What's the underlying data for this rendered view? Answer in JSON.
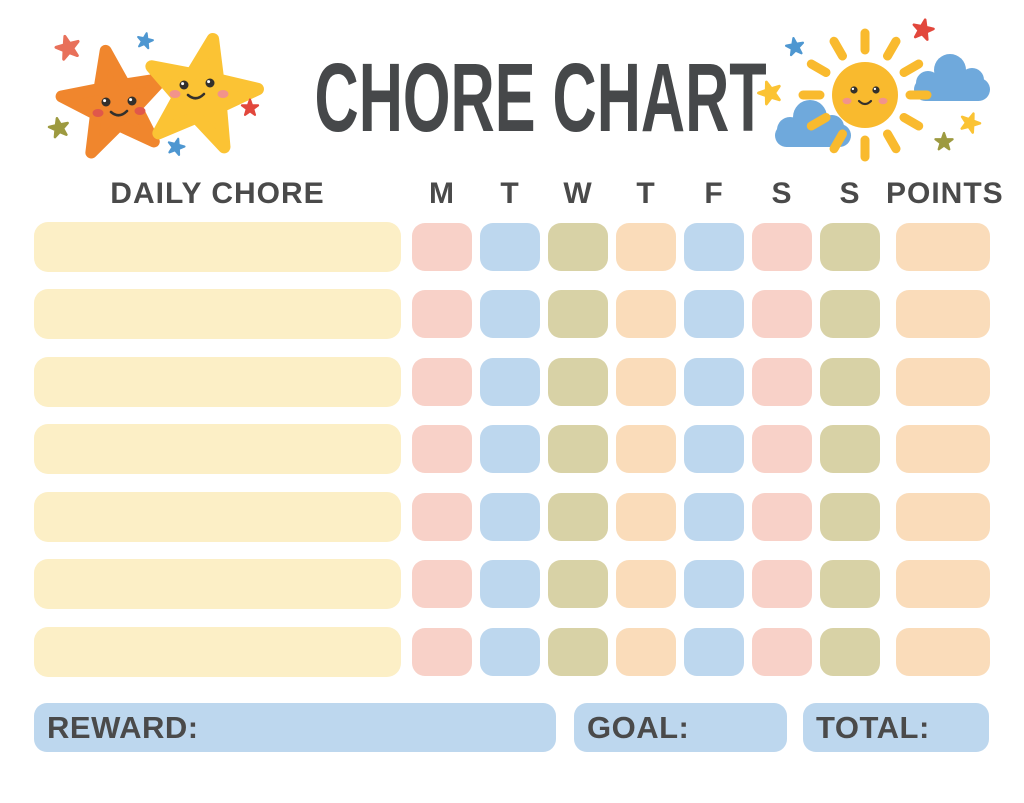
{
  "title": "CHORE CHART",
  "table": {
    "chore_column_header": "DAILY CHORE",
    "day_headers": [
      "M",
      "T",
      "W",
      "T",
      "F",
      "S",
      "S"
    ],
    "points_header": "POINTS",
    "row_count": 7,
    "rows": [
      {
        "chore": "",
        "points": ""
      },
      {
        "chore": "",
        "points": ""
      },
      {
        "chore": "",
        "points": ""
      },
      {
        "chore": "",
        "points": ""
      },
      {
        "chore": "",
        "points": ""
      },
      {
        "chore": "",
        "points": ""
      },
      {
        "chore": "",
        "points": ""
      }
    ],
    "day_cell_colors": [
      "pink",
      "blue",
      "olive",
      "peach",
      "blue",
      "pink",
      "olive"
    ],
    "points_cell_color": "peach",
    "chore_cell_color": "cream"
  },
  "footer": {
    "reward_label": "REWARD:",
    "reward_value": "",
    "goal_label": "GOAL:",
    "goal_value": "",
    "total_label": "TOTAL:",
    "total_value": ""
  },
  "decorations": {
    "left": "two-smiling-stars-with-sparkle-stars",
    "right": "smiling-sun-with-clouds-and-sparkle-stars"
  },
  "colors": {
    "cream": "#FCEFC6",
    "pink": "#F8D1C8",
    "blue": "#BDD7EE",
    "olive": "#D8D2A6",
    "peach": "#FADCBA",
    "footer_box": "#BDD7EE",
    "text": "#4A4A4A",
    "title": "#46484A",
    "star_orange": "#F0862D",
    "star_yellow": "#FBC334",
    "sun": "#F9BA2E",
    "cloud": "#6FA9DC",
    "accent_red": "#E2473C",
    "accent_coral": "#E8705A",
    "accent_blue": "#4E97D1",
    "accent_olive": "#9D9A40",
    "cheek_red": "#E0584A",
    "cheek_pink": "#F2938B",
    "face": "#33302C"
  }
}
